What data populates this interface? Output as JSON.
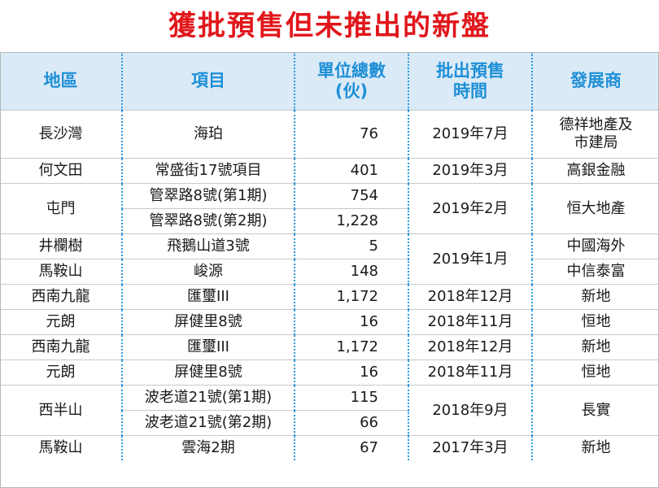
{
  "title": "獲批預售但未推出的新盤",
  "table": {
    "headers": {
      "district": "地區",
      "project": "項目",
      "units_l1": "單位總數",
      "units_l2": "(伙)",
      "date_l1": "批出預售",
      "date_l2": "時間",
      "developer": "發展商"
    },
    "rows": [
      {
        "district": "長沙灣",
        "project": "海珀",
        "units": "76",
        "date": "2019年7月",
        "developer_l1": "德祥地產及",
        "developer_l2": "市建局"
      },
      {
        "district": "何文田",
        "project": "常盛街17號項目",
        "units": "401",
        "date": "2019年3月",
        "developer": "高銀金融"
      },
      {
        "district": "屯門",
        "project": "管翠路8號(第1期)",
        "units": "754",
        "date": "2019年2月",
        "developer": "恒大地產"
      },
      {
        "project": "管翠路8號(第2期)",
        "units": "1,228"
      },
      {
        "district": "井欄樹",
        "project": "飛鵝山道3號",
        "units": "5",
        "date": "2019年1月",
        "developer": "中國海外"
      },
      {
        "district": "馬鞍山",
        "project": "峻源",
        "units": "148",
        "developer": "中信泰富"
      },
      {
        "district": "西南九龍",
        "project": "匯璽III",
        "units": "1,172",
        "date": "2018年12月",
        "developer": "新地"
      },
      {
        "district": "元朗",
        "project": "屏健里8號",
        "units": "16",
        "date": "2018年11月",
        "developer": "恒地"
      },
      {
        "district": "西南九龍",
        "project": "匯璽III",
        "units": "1,172",
        "date": "2018年12月",
        "developer": "新地"
      },
      {
        "district": "元朗",
        "project": "屏健里8號",
        "units": "16",
        "date": "2018年11月",
        "developer": "恒地"
      },
      {
        "district": "西半山",
        "project": "波老道21號(第1期)",
        "units": "115",
        "date": "2018年9月",
        "developer": "長實"
      },
      {
        "project": "波老道21號(第2期)",
        "units": "66"
      },
      {
        "district": "馬鞍山",
        "project": "雲海2期",
        "units": "67",
        "date": "2017年3月",
        "developer": "新地"
      }
    ]
  }
}
